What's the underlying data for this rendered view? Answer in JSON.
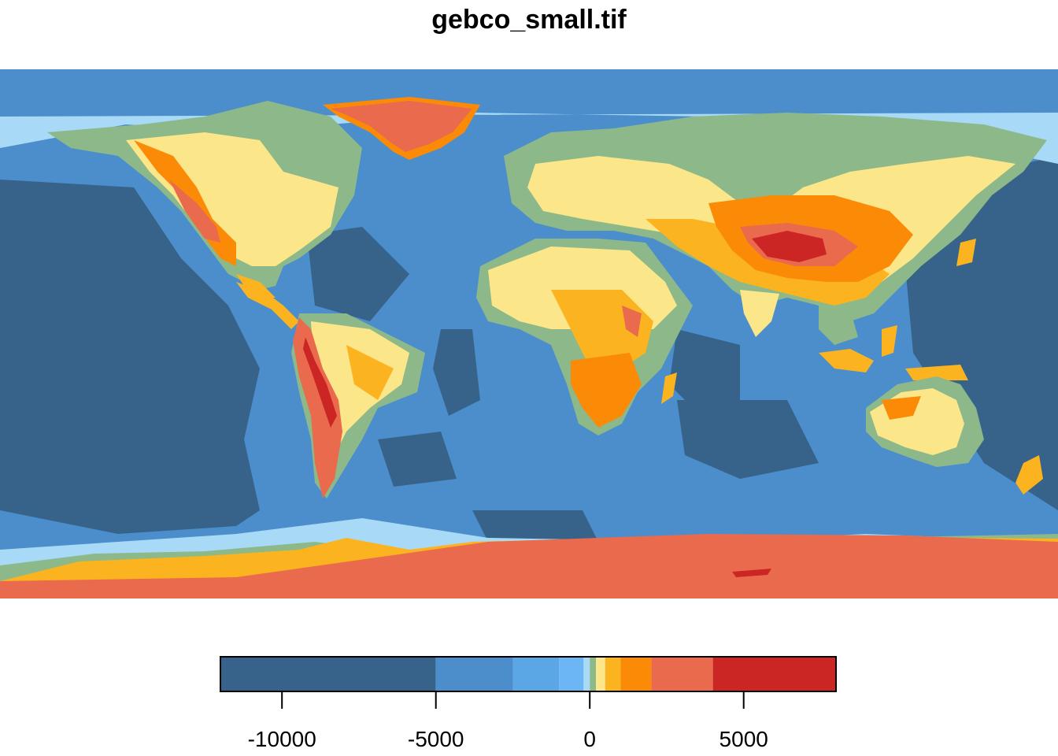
{
  "title": "gebco_small.tif",
  "map": {
    "projection": "equirectangular",
    "extent": {
      "lon": [
        -180,
        180
      ],
      "lat": [
        -90,
        90
      ]
    },
    "ocean_base_color": "#4b8ecb",
    "regions": [
      {
        "name": "north-america",
        "class": "land"
      },
      {
        "name": "south-america",
        "class": "land"
      },
      {
        "name": "greenland",
        "class": "ice"
      },
      {
        "name": "africa",
        "class": "land"
      },
      {
        "name": "eurasia",
        "class": "land"
      },
      {
        "name": "australia",
        "class": "land"
      },
      {
        "name": "antarctica",
        "class": "ice"
      }
    ]
  },
  "legend": {
    "range": [
      -12000,
      8000
    ],
    "breaks": [
      -12000,
      -5000,
      -2500,
      -1000,
      -200,
      0,
      200,
      500,
      1000,
      2000,
      4000,
      8000
    ],
    "colors": [
      "#37628a",
      "#4b8ecb",
      "#5ba7e6",
      "#6db6f5",
      "#a8daf7",
      "#8db98a",
      "#fce68a",
      "#fbb41f",
      "#fb8a07",
      "#ea6a4e",
      "#cc2624"
    ],
    "ticks": [
      -10000,
      -5000,
      0,
      5000
    ],
    "tick_labels": [
      "-10000",
      "-5000",
      "0",
      "5000"
    ]
  }
}
